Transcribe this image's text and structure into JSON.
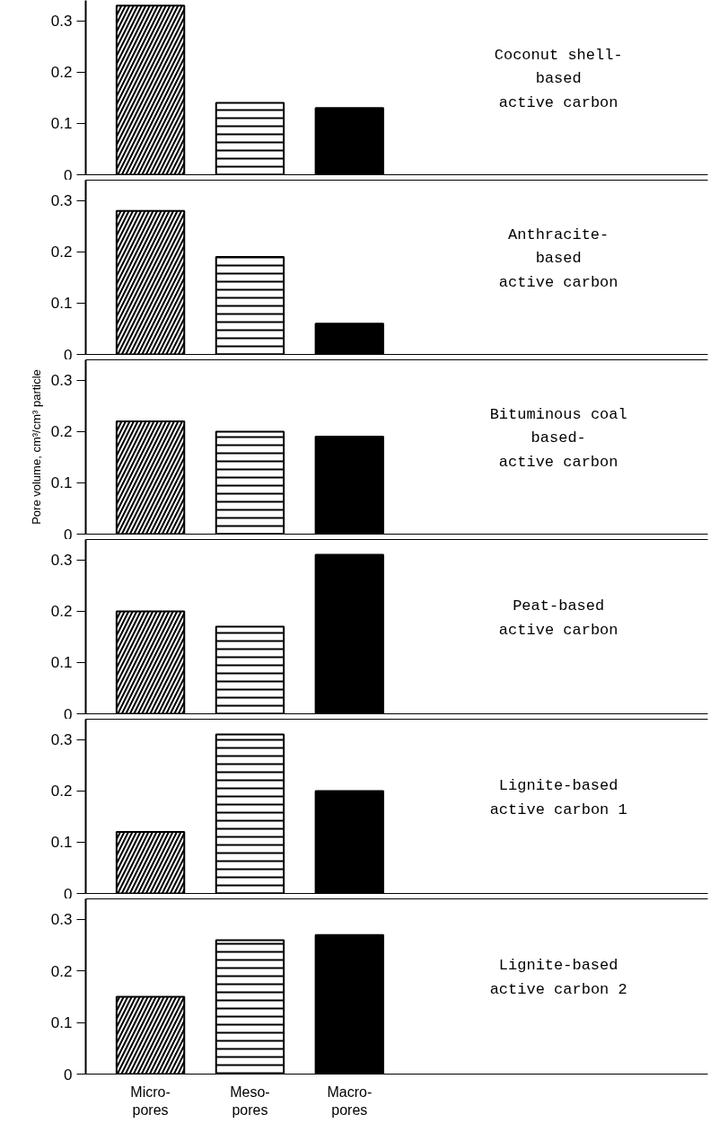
{
  "chart_data": [
    {
      "type": "bar",
      "annotations": [
        "Coconut shell-\nbased\nactive carbon"
      ],
      "categories": [
        null,
        null,
        null
      ],
      "values": [
        0.33,
        0.14,
        0.13
      ],
      "colors": [
        "#000000",
        "#000000",
        "#000000"
      ],
      "ylim": [
        0,
        0.34
      ],
      "yticks": [
        0,
        0.1,
        0.2,
        0.3
      ],
      "grid": false,
      "tick_labels": "y"
    },
    {
      "type": "bar",
      "annotations": [
        "Anthracite-\nbased\nactive carbon"
      ],
      "categories": [
        null,
        null,
        null
      ],
      "values": [
        0.28,
        0.19,
        0.06
      ],
      "colors": [
        "#000000",
        "#000000",
        "#000000"
      ],
      "ylim": [
        0,
        0.34
      ],
      "yticks": [
        0,
        0.1,
        0.2,
        0.3
      ],
      "grid": false,
      "tick_labels": "y"
    },
    {
      "type": "bar",
      "annotations": [
        "Bituminous coal\nbased-\nactive carbon"
      ],
      "ylabel": "Pore volume, cm³/cm³ particle",
      "categories": [
        null,
        null,
        null
      ],
      "values": [
        0.22,
        0.2,
        0.19
      ],
      "colors": [
        "#000000",
        "#000000",
        "#000000"
      ],
      "ylim": [
        0,
        0.34
      ],
      "yticks": [
        0,
        0.1,
        0.2,
        0.3
      ],
      "grid": false,
      "tick_labels": "y"
    },
    {
      "type": "bar",
      "annotations": [
        "Peat-based\nactive carbon"
      ],
      "categories": [
        null,
        null,
        null
      ],
      "values": [
        0.2,
        0.17,
        0.31
      ],
      "colors": [
        "#000000",
        "#000000",
        "#000000"
      ],
      "ylim": [
        0,
        0.34
      ],
      "yticks": [
        0,
        0.1,
        0.2,
        0.3
      ],
      "grid": false,
      "tick_labels": "y"
    },
    {
      "type": "bar",
      "annotations": [
        "Lignite-based\nactive carbon 1"
      ],
      "categories": [
        null,
        null,
        null
      ],
      "values": [
        0.12,
        0.31,
        0.2
      ],
      "colors": [
        "#000000",
        "#000000",
        "#000000"
      ],
      "ylim": [
        0,
        0.34
      ],
      "yticks": [
        0,
        0.1,
        0.2,
        0.3
      ],
      "grid": false,
      "tick_labels": "y"
    },
    {
      "type": "bar",
      "annotations": [
        "Lignite-based\nactive carbon 2"
      ],
      "categories": [
        "Micro-\npores",
        "Meso-\npores",
        "Macro-\npores"
      ],
      "values": [
        0.15,
        0.26,
        0.27
      ],
      "colors": [
        "#000000",
        "#000000",
        "#000000"
      ],
      "ylim": [
        0,
        0.34
      ],
      "yticks": [
        0,
        0.1,
        0.2,
        0.3
      ],
      "grid": false
    }
  ]
}
